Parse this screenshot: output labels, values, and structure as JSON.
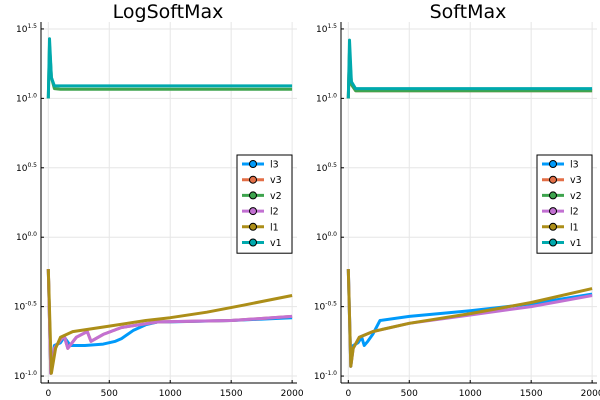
{
  "chart_data": [
    {
      "type": "line",
      "title": "LogSoftMax",
      "xlabel": "",
      "ylabel": "",
      "xlim": [
        -60,
        2040
      ],
      "ylim": [
        -1.05,
        1.55
      ],
      "yscale": "log10",
      "xticks": [
        0,
        500,
        1000,
        1500,
        2000
      ],
      "yticks": [
        {
          "base": "10",
          "exp": "1.5",
          "value": 1.5
        },
        {
          "base": "10",
          "exp": "1.0",
          "value": 1.0
        },
        {
          "base": "10",
          "exp": "0.5",
          "value": 0.5
        },
        {
          "base": "10",
          "exp": "0.0",
          "value": 0.0
        },
        {
          "base": "10",
          "exp": "-0.5",
          "value": -0.5
        },
        {
          "base": "10",
          "exp": "-1.0",
          "value": -1.0
        }
      ],
      "grid": true,
      "legend_position": "right",
      "series": [
        {
          "name": "l3",
          "color": "#009AFA",
          "points": [
            [
              0,
              -0.23
            ],
            [
              20,
              -0.98
            ],
            [
              50,
              -0.78
            ],
            [
              100,
              -0.76
            ],
            [
              130,
              -0.72
            ],
            [
              180,
              -0.78
            ],
            [
              300,
              -0.78
            ],
            [
              450,
              -0.77
            ],
            [
              550,
              -0.75
            ],
            [
              600,
              -0.73
            ],
            [
              700,
              -0.67
            ],
            [
              800,
              -0.63
            ],
            [
              900,
              -0.61
            ],
            [
              1000,
              -0.61
            ],
            [
              1500,
              -0.6
            ],
            [
              2000,
              -0.58
            ]
          ]
        },
        {
          "name": "v3",
          "color": "#E36F47",
          "points": [
            [
              0,
              -0.23
            ],
            [
              20,
              -0.98
            ],
            [
              50,
              -0.8
            ],
            [
              100,
              -0.74
            ],
            [
              130,
              -0.71
            ],
            [
              160,
              -0.8
            ],
            [
              230,
              -0.72
            ],
            [
              320,
              -0.68
            ],
            [
              350,
              -0.75
            ],
            [
              450,
              -0.7
            ],
            [
              600,
              -0.65
            ],
            [
              900,
              -0.61
            ],
            [
              1500,
              -0.6
            ],
            [
              2000,
              -0.57
            ]
          ]
        },
        {
          "name": "v2",
          "color": "#3EA44E",
          "points": [
            [
              0,
              1.0
            ],
            [
              10,
              1.38
            ],
            [
              25,
              1.15
            ],
            [
              50,
              1.07
            ],
            [
              100,
              1.065
            ],
            [
              500,
              1.065
            ],
            [
              1000,
              1.065
            ],
            [
              1500,
              1.065
            ],
            [
              2000,
              1.065
            ]
          ]
        },
        {
          "name": "l2",
          "color": "#C271D2",
          "points": [
            [
              0,
              -0.23
            ],
            [
              20,
              -0.98
            ],
            [
              50,
              -0.8
            ],
            [
              100,
              -0.74
            ],
            [
              130,
              -0.71
            ],
            [
              160,
              -0.8
            ],
            [
              230,
              -0.72
            ],
            [
              320,
              -0.68
            ],
            [
              350,
              -0.75
            ],
            [
              450,
              -0.7
            ],
            [
              600,
              -0.65
            ],
            [
              900,
              -0.61
            ],
            [
              1500,
              -0.6
            ],
            [
              2000,
              -0.57
            ]
          ]
        },
        {
          "name": "l1",
          "color": "#AC8E18",
          "points": [
            [
              0,
              -0.23
            ],
            [
              25,
              -0.98
            ],
            [
              60,
              -0.8
            ],
            [
              100,
              -0.72
            ],
            [
              200,
              -0.68
            ],
            [
              500,
              -0.64
            ],
            [
              800,
              -0.6
            ],
            [
              1000,
              -0.58
            ],
            [
              1300,
              -0.54
            ],
            [
              1600,
              -0.49
            ],
            [
              2000,
              -0.42
            ]
          ]
        },
        {
          "name": "v1",
          "color": "#00A9AD",
          "points": [
            [
              0,
              1.0
            ],
            [
              10,
              1.43
            ],
            [
              25,
              1.15
            ],
            [
              50,
              1.09
            ],
            [
              100,
              1.09
            ],
            [
              500,
              1.09
            ],
            [
              1000,
              1.09
            ],
            [
              1500,
              1.09
            ],
            [
              2000,
              1.09
            ]
          ]
        }
      ]
    },
    {
      "type": "line",
      "title": "SoftMax",
      "xlabel": "",
      "ylabel": "",
      "xlim": [
        -60,
        2040
      ],
      "ylim": [
        -1.05,
        1.55
      ],
      "yscale": "log10",
      "xticks": [
        0,
        500,
        1000,
        1500,
        2000
      ],
      "yticks": [
        {
          "base": "10",
          "exp": "1.5",
          "value": 1.5
        },
        {
          "base": "10",
          "exp": "1.0",
          "value": 1.0
        },
        {
          "base": "10",
          "exp": "0.5",
          "value": 0.5
        },
        {
          "base": "10",
          "exp": "0.0",
          "value": 0.0
        },
        {
          "base": "10",
          "exp": "-0.5",
          "value": -0.5
        },
        {
          "base": "10",
          "exp": "-1.0",
          "value": -1.0
        }
      ],
      "grid": true,
      "legend_position": "right",
      "series": [
        {
          "name": "l3",
          "color": "#009AFA",
          "points": [
            [
              0,
              -0.23
            ],
            [
              20,
              -0.93
            ],
            [
              40,
              -0.78
            ],
            [
              80,
              -0.76
            ],
            [
              110,
              -0.72
            ],
            [
              130,
              -0.78
            ],
            [
              160,
              -0.75
            ],
            [
              200,
              -0.7
            ],
            [
              260,
              -0.6
            ],
            [
              500,
              -0.57
            ],
            [
              1000,
              -0.53
            ],
            [
              1500,
              -0.48
            ],
            [
              2000,
              -0.41
            ]
          ]
        },
        {
          "name": "v3",
          "color": "#E36F47",
          "points": [
            [
              0,
              1.0
            ],
            [
              10,
              1.33
            ],
            [
              25,
              1.1
            ],
            [
              60,
              1.055
            ],
            [
              500,
              1.055
            ],
            [
              1000,
              1.055
            ],
            [
              1500,
              1.055
            ],
            [
              2000,
              1.055
            ]
          ]
        },
        {
          "name": "v2",
          "color": "#3EA44E",
          "points": [
            [
              0,
              1.0
            ],
            [
              10,
              1.33
            ],
            [
              25,
              1.1
            ],
            [
              60,
              1.055
            ],
            [
              500,
              1.055
            ],
            [
              1000,
              1.055
            ],
            [
              1500,
              1.055
            ],
            [
              2000,
              1.055
            ]
          ]
        },
        {
          "name": "l2",
          "color": "#C271D2",
          "points": [
            [
              0,
              -0.23
            ],
            [
              20,
              -0.93
            ],
            [
              40,
              -0.8
            ],
            [
              90,
              -0.72
            ],
            [
              200,
              -0.68
            ],
            [
              500,
              -0.62
            ],
            [
              1000,
              -0.56
            ],
            [
              1500,
              -0.5
            ],
            [
              2000,
              -0.42
            ]
          ]
        },
        {
          "name": "l1",
          "color": "#AC8E18",
          "points": [
            [
              0,
              -0.23
            ],
            [
              20,
              -0.93
            ],
            [
              40,
              -0.8
            ],
            [
              90,
              -0.72
            ],
            [
              200,
              -0.68
            ],
            [
              500,
              -0.62
            ],
            [
              1000,
              -0.55
            ],
            [
              1500,
              -0.47
            ],
            [
              2000,
              -0.37
            ]
          ]
        },
        {
          "name": "v1",
          "color": "#00A9AD",
          "points": [
            [
              0,
              1.0
            ],
            [
              10,
              1.42
            ],
            [
              25,
              1.12
            ],
            [
              60,
              1.07
            ],
            [
              500,
              1.07
            ],
            [
              1000,
              1.07
            ],
            [
              1500,
              1.07
            ],
            [
              2000,
              1.07
            ]
          ]
        }
      ]
    }
  ]
}
